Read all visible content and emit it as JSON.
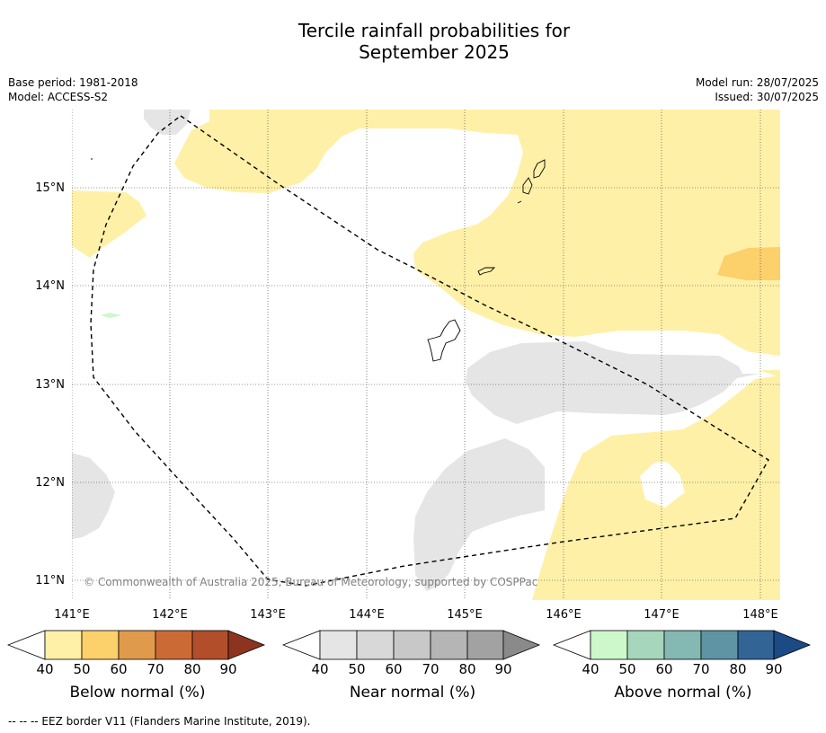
{
  "title": "Tercile rainfall probabilities for",
  "title_line2": "September 2025",
  "base_period": "Base period: 1981-2018",
  "model": "Model: ACCESS-S2",
  "model_run": "Model run: 28/07/2025",
  "issued": "Issued: 30/07/2025",
  "copyright": "© Commonwealth of Australia 2025, Bureau of Meteorology, supported by COSPPac",
  "footnote": "--  --  -- EEZ border V11 (Flanders Marine Institute, 2019).",
  "axes": {
    "x_ticks": [
      "141°E",
      "142°E",
      "143°E",
      "144°E",
      "145°E",
      "146°E",
      "147°E",
      "148°E"
    ],
    "y_ticks": [
      "15°N",
      "14°N",
      "13°N",
      "12°N",
      "11°N"
    ]
  },
  "map_extent": {
    "lon_min": 141.0,
    "lon_max": 148.2,
    "lat_min": 10.8,
    "lat_max": 15.8
  },
  "colorbars": [
    {
      "name": "below",
      "title": "Below normal (%)",
      "ticks": [
        "40",
        "50",
        "60",
        "70",
        "80",
        "90"
      ],
      "colors": [
        "#fff0a8",
        "#fcd06a",
        "#e09a4c",
        "#cc6a36",
        "#b24e2a",
        "#8c3420"
      ]
    },
    {
      "name": "near",
      "title": "Near normal (%)",
      "ticks": [
        "40",
        "50",
        "60",
        "70",
        "80",
        "90"
      ],
      "colors": [
        "#e5e5e5",
        "#d8d8d8",
        "#c8c8c8",
        "#b5b5b5",
        "#a2a2a2",
        "#8a8a8a"
      ]
    },
    {
      "name": "above",
      "title": "Above normal (%)",
      "ticks": [
        "40",
        "50",
        "60",
        "70",
        "80",
        "90"
      ],
      "colors": [
        "#ccf8cc",
        "#a6d6bc",
        "#84b8b2",
        "#5e94a4",
        "#336496",
        "#1c4a84"
      ]
    }
  ]
}
